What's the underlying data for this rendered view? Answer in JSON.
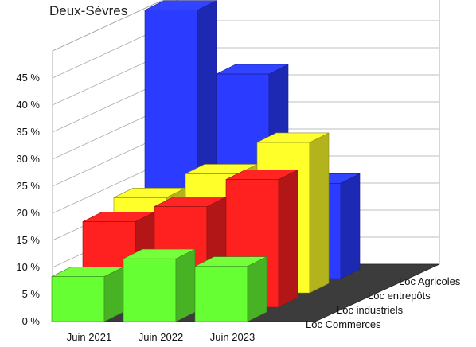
{
  "chart_data": {
    "type": "bar",
    "title": "Deux-Sèvres",
    "categories": [
      "Juin 2021",
      "Juin 2022",
      "Juin 2023"
    ],
    "y_ticks": [
      "0 %",
      "5 %",
      "10 %",
      "15 %",
      "20 %",
      "25 %",
      "30 %",
      "35 %",
      "40 %",
      "45 %"
    ],
    "ylim": [
      0,
      50
    ],
    "grid": true,
    "series": [
      {
        "name": "Loc Commerces",
        "color": "#66ff33",
        "values": [
          8.3,
          11.6,
          10.2
        ]
      },
      {
        "name": "Loc industriels",
        "color": "#ff2020",
        "values": [
          15.8,
          18.6,
          23.6
        ]
      },
      {
        "name": "Loc entrepôts",
        "color": "#ffff2a",
        "values": [
          17.6,
          22.0,
          27.8
        ]
      },
      {
        "name": "Loc Agricoles",
        "color": "#2b3bff",
        "values": [
          49.6,
          37.8,
          17.6
        ]
      }
    ]
  }
}
